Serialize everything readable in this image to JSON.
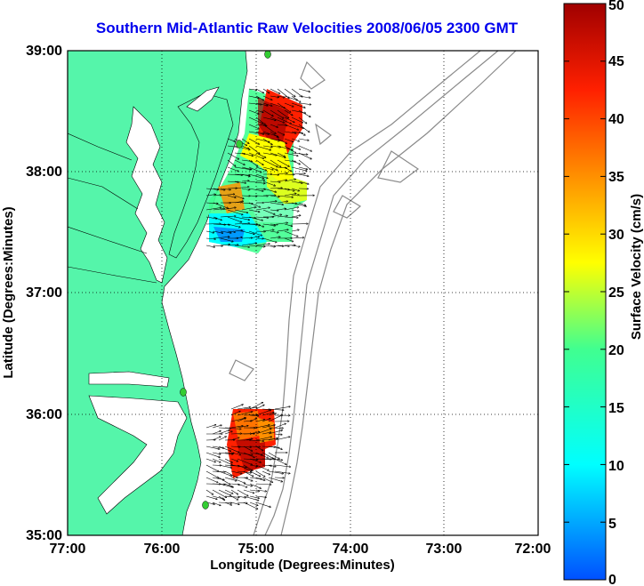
{
  "title": "Southern Mid-Atlantic Raw Velocities 2008/06/05 2300 GMT",
  "x_axis": {
    "label": "Longitude (Degrees:Minutes)",
    "ticks": [
      "77:00",
      "76:00",
      "75:00",
      "74:00",
      "73:00",
      "72:00"
    ]
  },
  "y_axis": {
    "label": "Latitude (Degrees:Minutes)",
    "ticks": [
      "39:00",
      "38:00",
      "37:00",
      "36:00",
      "35:00"
    ]
  },
  "colorbar": {
    "label": "Surface Velocity (cm/s)",
    "ticks": [
      "0",
      "5",
      "10",
      "15",
      "20",
      "25",
      "30",
      "35",
      "40",
      "45",
      "50"
    ],
    "min": 0,
    "max": 50
  },
  "colors": {
    "land": "#55f5aa",
    "title": "#0000ee",
    "bathymetry": "#8a8a8a",
    "station": "#33cc33"
  },
  "chart_data": {
    "type": "heatmap",
    "title": "Southern Mid-Atlantic Raw Velocities 2008/06/05 2300 GMT",
    "xlabel": "Longitude (Degrees:Minutes)",
    "ylabel": "Latitude (Degrees:Minutes)",
    "xlim": [
      -77,
      -72
    ],
    "ylim": [
      35,
      39
    ],
    "grid": true,
    "colorbar_range": [
      0,
      50
    ],
    "regions": [
      {
        "area": "northern",
        "lon_range": [
          -75.5,
          -74.6
        ],
        "lat_range": [
          37.25,
          38.8
        ],
        "velocity_samples": [
          {
            "lon": -74.7,
            "lat": 38.6,
            "speed": 47
          },
          {
            "lon": -74.8,
            "lat": 38.4,
            "speed": 42
          },
          {
            "lon": -75.0,
            "lat": 38.3,
            "speed": 30
          },
          {
            "lon": -74.8,
            "lat": 38.0,
            "speed": 26
          },
          {
            "lon": -75.1,
            "lat": 37.9,
            "speed": 22
          },
          {
            "lon": -75.3,
            "lat": 37.75,
            "speed": 33
          },
          {
            "lon": -74.9,
            "lat": 37.6,
            "speed": 17
          },
          {
            "lon": -75.3,
            "lat": 37.5,
            "speed": 12
          },
          {
            "lon": -75.1,
            "lat": 37.4,
            "speed": 14
          }
        ]
      },
      {
        "area": "southern",
        "lon_range": [
          -75.2,
          -74.7
        ],
        "lat_range": [
          35.5,
          36.05
        ],
        "velocity_samples": [
          {
            "lon": -74.8,
            "lat": 36.0,
            "speed": 45
          },
          {
            "lon": -75.0,
            "lat": 35.85,
            "speed": 40
          },
          {
            "lon": -75.1,
            "lat": 35.7,
            "speed": 35
          },
          {
            "lon": -74.85,
            "lat": 35.75,
            "speed": 31
          },
          {
            "lon": -75.05,
            "lat": 35.55,
            "speed": 38
          }
        ]
      }
    ]
  }
}
